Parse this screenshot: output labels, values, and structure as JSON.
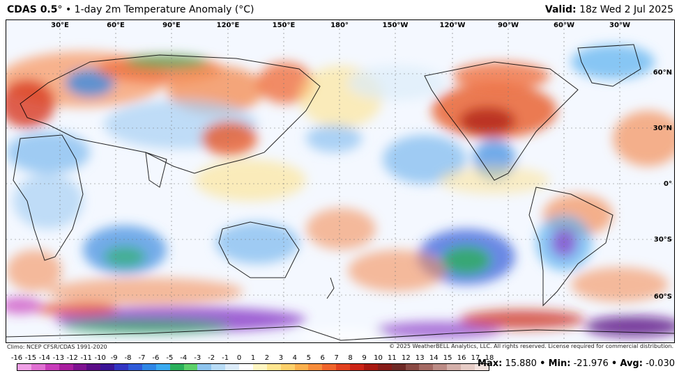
{
  "header": {
    "model": "CDAS 0.5",
    "degree": "°",
    "bullet": "•",
    "field": "1-day 2m Temperature Anomaly (°C)",
    "valid_label": "Valid:",
    "valid_time": "18z Wed 2 Jul 2025"
  },
  "map": {
    "lon_labels": [
      "30°E",
      "60°E",
      "90°E",
      "120°E",
      "150°E",
      "180°",
      "150°W",
      "120°W",
      "90°W",
      "60°W",
      "30°W"
    ],
    "lat_labels": [
      "60°N",
      "30°N",
      "0°",
      "30°S",
      "60°S"
    ]
  },
  "footer": {
    "climo": "Climo: NCEP CFSR/CDAS 1991-2020",
    "copyright": "© 2025 WeatherBELL Analytics, LLC. All rights reserved. License required for commercial distribution."
  },
  "colorbar": {
    "ticks": [
      "-16",
      "-15",
      "-14",
      "-13",
      "-12",
      "-11",
      "-10",
      "-9",
      "-8",
      "-7",
      "-6",
      "-5",
      "-4",
      "-3",
      "-2",
      "-1",
      "0",
      "1",
      "2",
      "3",
      "4",
      "5",
      "6",
      "7",
      "8",
      "9",
      "10",
      "11",
      "12",
      "13",
      "14",
      "15",
      "16",
      "17",
      "18"
    ],
    "colors": [
      "#f0a0e6",
      "#e070d2",
      "#c83cba",
      "#a81e9e",
      "#7e1290",
      "#5a0c86",
      "#3a1496",
      "#3234c2",
      "#2e5ad8",
      "#2e86e6",
      "#3aaaf0",
      "#2ab05a",
      "#5cd06a",
      "#8ec4ee",
      "#b8dcf6",
      "#dcecfa",
      "#ffffff",
      "#fff6c2",
      "#ffe690",
      "#fdd06a",
      "#fbb04c",
      "#f78c3a",
      "#f0642a",
      "#e2401e",
      "#cc2416",
      "#a81810",
      "#861c18",
      "#6e2a26",
      "#8a4a44",
      "#a46a64",
      "#bc8c86",
      "#d4b0aa",
      "#e6ccc6",
      "#f2e2de"
    ]
  },
  "stats": {
    "max_label": "Max",
    "max": "15.880",
    "min_label": "Min",
    "min": "-21.976",
    "avg_label": "Avg",
    "avg": "-0.030"
  }
}
